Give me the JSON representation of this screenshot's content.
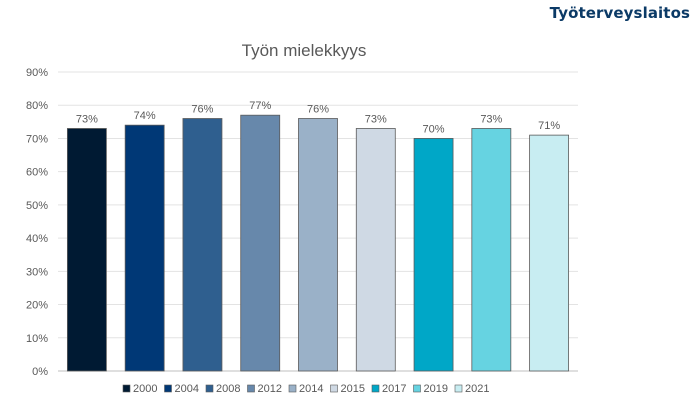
{
  "brand": "Työterveyslaitos",
  "chart_data": {
    "type": "bar",
    "title": "Työn mielekkyys",
    "categories": [
      "2000",
      "2004",
      "2008",
      "2012",
      "2014",
      "2015",
      "2017",
      "2019",
      "2021"
    ],
    "values": [
      73,
      74,
      76,
      77,
      76,
      73,
      70,
      73,
      71
    ],
    "data_labels": [
      "73%",
      "74%",
      "76%",
      "77%",
      "76%",
      "73%",
      "70%",
      "73%",
      "71%"
    ],
    "colors": [
      "#001a33",
      "#003876",
      "#2f5f8f",
      "#6788ab",
      "#9ab1c8",
      "#cfd9e4",
      "#00a7c7",
      "#66d3e1",
      "#c8edf2"
    ],
    "ylim": [
      0,
      90
    ],
    "yticks": [
      0,
      10,
      20,
      30,
      40,
      50,
      60,
      70,
      80,
      90
    ],
    "ytick_labels": [
      "0%",
      "10%",
      "20%",
      "30%",
      "40%",
      "50%",
      "60%",
      "70%",
      "80%",
      "90%"
    ],
    "grid": true,
    "legend": "bottom",
    "xlabel": "",
    "ylabel": ""
  }
}
